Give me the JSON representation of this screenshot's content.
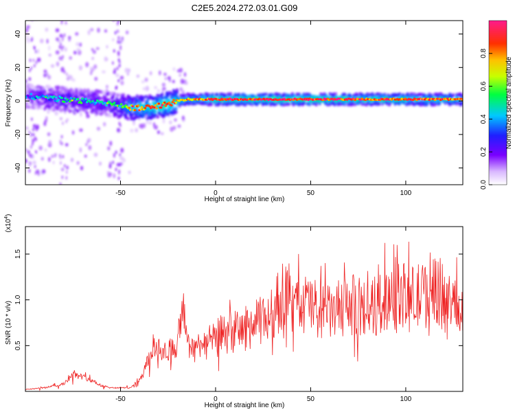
{
  "title": "C2E5.2024.272.03.01.G09",
  "chart_data": [
    {
      "type": "heatmap",
      "title": "C2E5.2024.272.03.01.G09",
      "xlabel": "Height of straight line (km)",
      "ylabel": "Frequency (Hz)",
      "xlim": [
        -100,
        130
      ],
      "ylim": [
        -50,
        48
      ],
      "xticks": [
        -50,
        0,
        50,
        100
      ],
      "yticks": [
        -40,
        -20,
        0,
        20,
        40
      ],
      "colorbar": {
        "label": "Normalized spectral amplitude",
        "range": [
          0,
          1
        ],
        "ticks": [
          0.0,
          0.2,
          0.4,
          0.6,
          0.8
        ],
        "colormap": "rainbow (white-violet-blue-cyan-green-yellow-orange-red-magenta)"
      },
      "ridge": {
        "x": [
          -100,
          -90,
          -80,
          -70,
          -60,
          -55,
          -50,
          -45,
          -40,
          -35,
          -30,
          -25,
          -20,
          -15,
          -10,
          0,
          25,
          50,
          75,
          100,
          130
        ],
        "freq": [
          3,
          2,
          1,
          0,
          -1,
          -2,
          -3,
          -4,
          -4,
          -4,
          -3,
          -2,
          0,
          1,
          1,
          1,
          1,
          1,
          1,
          1,
          1
        ],
        "amplitude": [
          0.3,
          0.4,
          0.45,
          0.45,
          0.4,
          0.45,
          0.55,
          0.7,
          0.8,
          0.8,
          0.85,
          0.85,
          0.8,
          0.75,
          0.75,
          0.9,
          0.9,
          0.9,
          0.85,
          0.85,
          0.8
        ]
      },
      "grid": false
    },
    {
      "type": "line",
      "xlabel": "Height of straight line (km)",
      "ylabel": "SNR (10 * v/v)",
      "y_multiplier": "(x10^4)",
      "xlim": [
        -100,
        130
      ],
      "ylim": [
        0,
        1.8
      ],
      "xticks": [
        -50,
        0,
        50,
        100
      ],
      "yticks": [
        0.5,
        1.0,
        1.5
      ],
      "yticklabels": [
        "0.5",
        "1.0",
        "1.5"
      ],
      "series": [
        {
          "color": "#ee2222",
          "x": [
            -100,
            -90,
            -80,
            -75,
            -70,
            -65,
            -60,
            -55,
            -50,
            -45,
            -40,
            -36,
            -33,
            -30,
            -25,
            -20,
            -17,
            -15,
            -10,
            -5,
            0,
            10,
            20,
            30,
            36,
            40,
            45,
            50,
            60,
            70,
            80,
            90,
            95,
            100,
            110,
            115,
            120,
            125,
            130
          ],
          "y": [
            0.02,
            0.04,
            0.08,
            0.18,
            0.16,
            0.12,
            0.06,
            0.04,
            0.04,
            0.04,
            0.12,
            0.3,
            0.5,
            0.45,
            0.45,
            0.5,
            0.9,
            0.5,
            0.5,
            0.55,
            0.6,
            0.65,
            0.72,
            0.85,
            1.1,
            0.9,
            0.95,
            0.95,
            0.85,
            0.95,
            0.9,
            1.0,
            1.2,
            1.0,
            1.05,
            1.2,
            1.0,
            0.95,
            0.9
          ]
        }
      ],
      "grid": false
    }
  ]
}
